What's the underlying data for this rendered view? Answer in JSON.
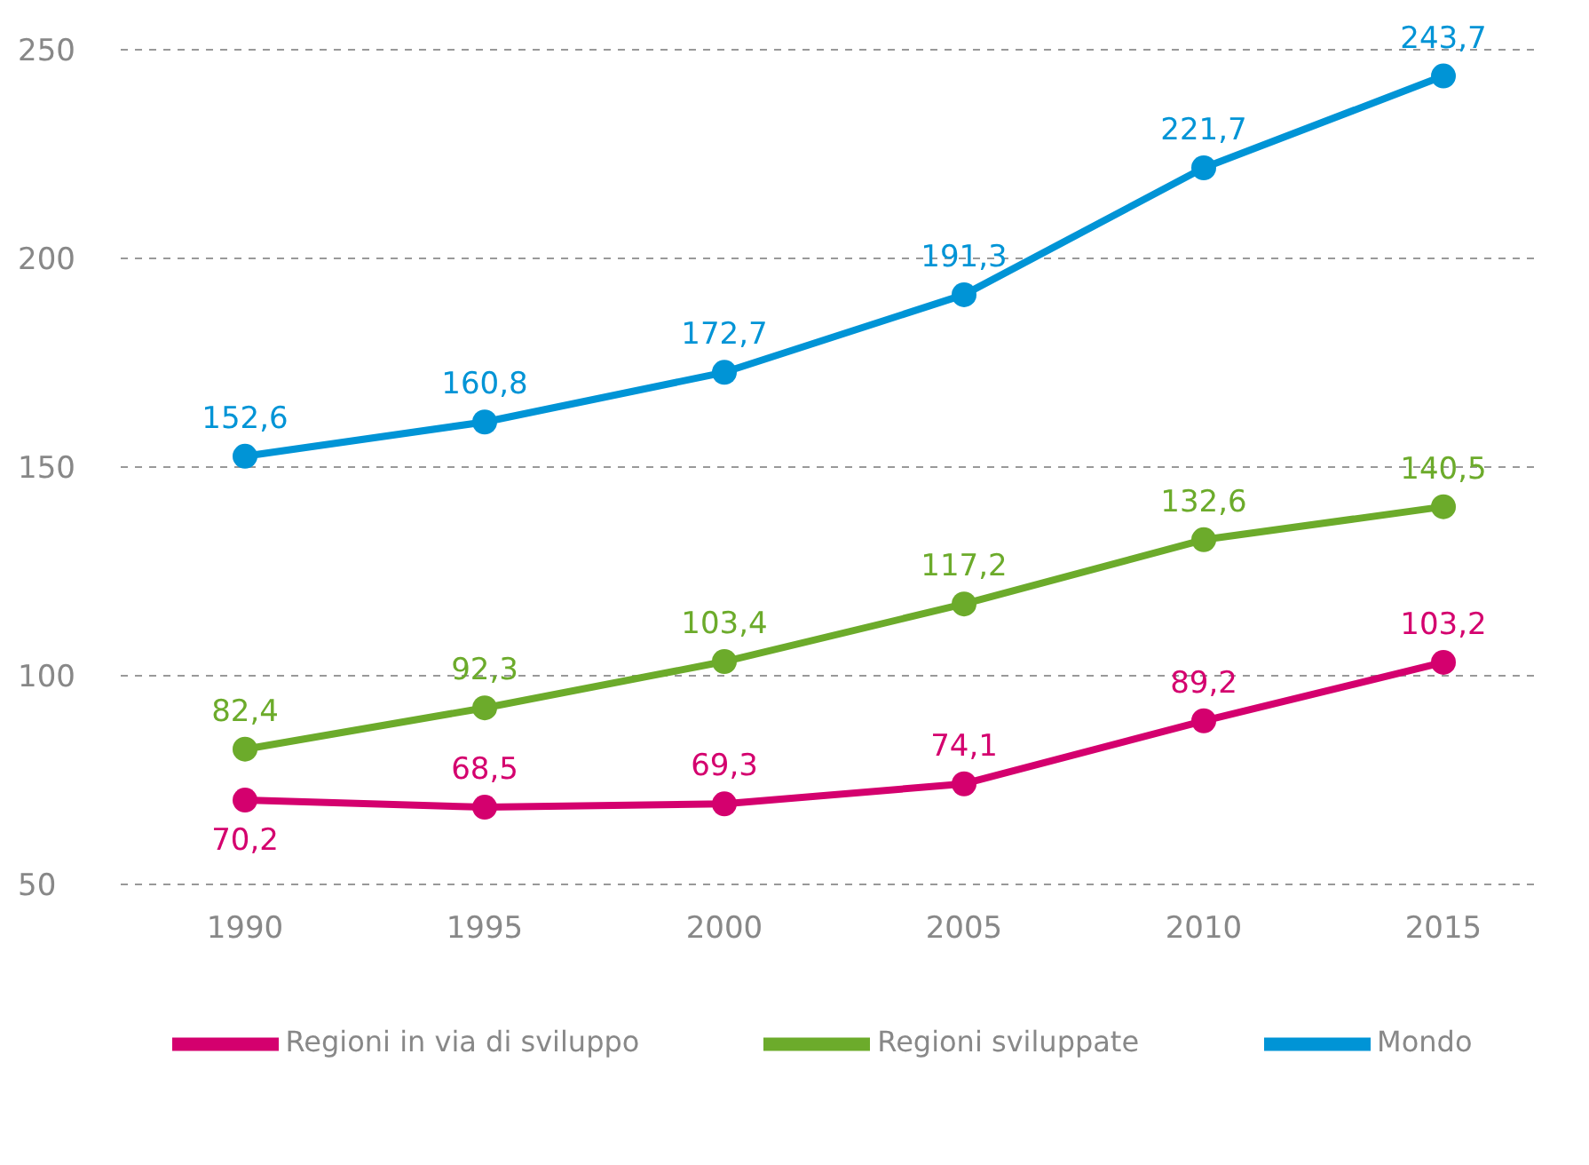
{
  "chart_data": {
    "type": "line",
    "categories": [
      "1990",
      "1995",
      "2000",
      "2005",
      "2010",
      "2015"
    ],
    "series": [
      {
        "name": "Regioni in via di sviluppo",
        "color": "#d4006e",
        "values": [
          70.2,
          68.5,
          69.3,
          74.1,
          89.2,
          103.2
        ],
        "value_labels": [
          "70,2",
          "68,5",
          "69,3",
          "74,1",
          "89,2",
          "103,2"
        ]
      },
      {
        "name": "Regioni sviluppate",
        "color": "#6cab2b",
        "values": [
          82.4,
          92.3,
          103.4,
          117.2,
          132.6,
          140.5
        ],
        "value_labels": [
          "82,4",
          "92,3",
          "103,4",
          "117,2",
          "132,6",
          "140,5"
        ]
      },
      {
        "name": "Mondo",
        "color": "#0094d6",
        "values": [
          152.6,
          160.8,
          172.7,
          191.3,
          221.7,
          243.7
        ],
        "value_labels": [
          "152,6",
          "160,8",
          "172,7",
          "191,3",
          "221,7",
          "243,7"
        ]
      }
    ],
    "ylim": [
      50,
      250
    ],
    "yticks": [
      50,
      100,
      150,
      200,
      250
    ],
    "grid": "y",
    "legend": "bottom",
    "marker": "circle",
    "line_style": "solid"
  }
}
